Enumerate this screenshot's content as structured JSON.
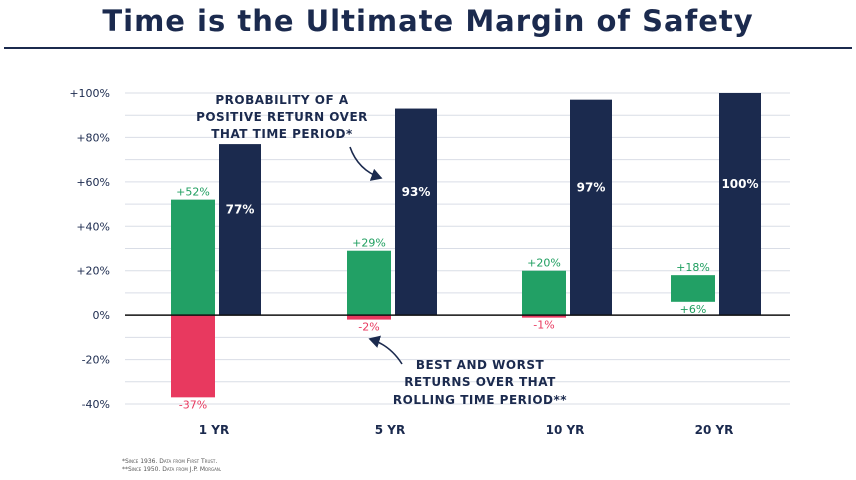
{
  "title": "Time is the Ultimate Margin of Safety",
  "footnotes": [
    "*Since 1936. Data from First Trust.",
    "**Since 1950. Data from J.P. Morgan."
  ],
  "annotations": {
    "probability": [
      "PROBABILITY OF A",
      "POSITIVE RETURN OVER",
      "THAT TIME PERIOD*"
    ],
    "best_worst": [
      "BEST AND WORST",
      "RETURNS OVER THAT",
      "ROLLING TIME PERIOD**"
    ]
  },
  "colors": {
    "navy": "#1b2a4e",
    "green": "#22a065",
    "red": "#e8395f",
    "grid": "#d9dde6"
  },
  "chart_data": {
    "type": "bar",
    "categories": [
      "1 YR",
      "5 YR",
      "10 YR",
      "20 YR"
    ],
    "ylim": [
      -40,
      100
    ],
    "yticks": [
      -40,
      -20,
      0,
      20,
      40,
      60,
      80,
      100
    ],
    "ytick_labels": [
      "-40%",
      "-20%",
      "0%",
      "+20%",
      "+40%",
      "+60%",
      "+80%",
      "+100%"
    ],
    "grid": true,
    "series": [
      {
        "values": [
          77,
          93,
          97,
          100
        ],
        "labels": [
          "77%",
          "93%",
          "97%",
          "100%"
        ]
      },
      {
        "best": [
          52,
          29,
          20,
          18
        ],
        "worst": [
          -37,
          -2,
          -1,
          6
        ],
        "best_labels": [
          "+52%",
          "+29%",
          "+20%",
          "+18%"
        ],
        "worst_labels": [
          "-37%",
          "-2%",
          "-1%",
          "+6%"
        ]
      }
    ]
  }
}
